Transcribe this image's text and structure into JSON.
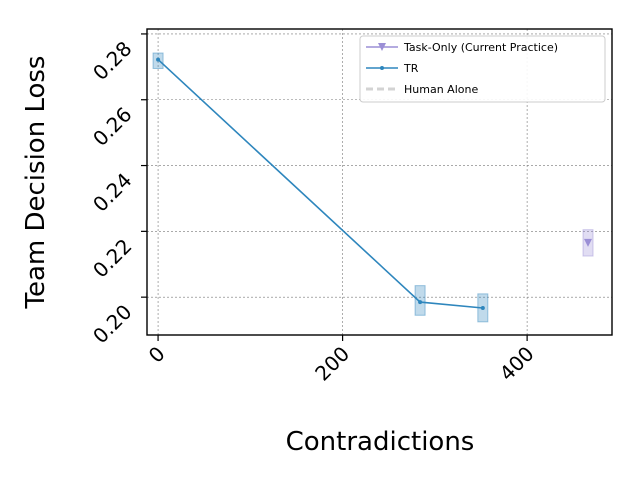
{
  "chart_data": {
    "type": "line",
    "xlabel": "Contradictions",
    "ylabel": "Team Decision Loss",
    "xlim": [
      -12,
      492
    ],
    "ylim": [
      0.1885,
      0.2815
    ],
    "x_ticks": [
      0,
      200,
      400
    ],
    "y_ticks": [
      0.2,
      0.22,
      0.24,
      0.26,
      0.28
    ],
    "x_tick_labels": [
      "0",
      "200",
      "400"
    ],
    "y_tick_labels": [
      "0.20",
      "0.22",
      "0.24",
      "0.26",
      "0.28"
    ],
    "tick_label_rotation_deg": 45,
    "grid": true,
    "legend_position": "top-right",
    "series": [
      {
        "name": "Task-Only (Current Practice)",
        "color": "#9b8fd6",
        "marker": "triangle-down",
        "linestyle": "solid",
        "points": [
          {
            "x": 466,
            "y": 0.2165,
            "yerr_low": 0.2125,
            "yerr_high": 0.2205
          }
        ]
      },
      {
        "name": "TR",
        "color": "#2e86bd",
        "marker": "dot",
        "linestyle": "solid",
        "points": [
          {
            "x": 0,
            "y": 0.2722,
            "yerr_low": 0.2695,
            "yerr_high": 0.2742
          },
          {
            "x": 284,
            "y": 0.1985,
            "yerr_low": 0.1945,
            "yerr_high": 0.2035
          },
          {
            "x": 352,
            "y": 0.1967,
            "yerr_low": 0.1925,
            "yerr_high": 0.201
          }
        ]
      },
      {
        "name": "Human Alone",
        "color": "#d3d3d3",
        "marker": "none",
        "linestyle": "dashed",
        "points": []
      }
    ]
  }
}
